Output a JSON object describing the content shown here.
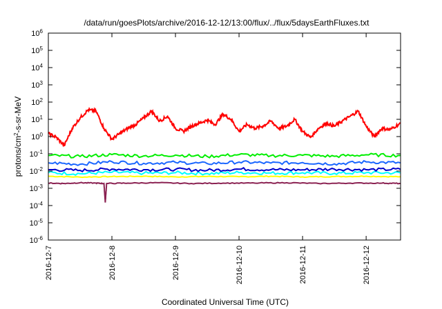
{
  "chart_data": {
    "type": "line",
    "title": "/data/run/goesPlots/archive/2016-12-12/13:00/flux/../flux/5daysEarthFluxes.txt",
    "xlabel": "Coordinated Universal Time (UTC)",
    "ylabel": {
      "base": "protons/cm",
      "sup": "2",
      "rest": "-s-sr-MeV"
    },
    "yscale": "log",
    "ylim": [
      1e-06,
      1000000.0
    ],
    "xlim": [
      "2016-12-07 00:00",
      "2016-12-12 13:00"
    ],
    "grid": false,
    "legend": "none",
    "y_ticks": [
      {
        "mantissa": "10",
        "exp": "-6"
      },
      {
        "mantissa": "10",
        "exp": "-5"
      },
      {
        "mantissa": "10",
        "exp": "-4"
      },
      {
        "mantissa": "10",
        "exp": "-3"
      },
      {
        "mantissa": "10",
        "exp": "-2"
      },
      {
        "mantissa": "10",
        "exp": "-1"
      },
      {
        "mantissa": "10",
        "exp": "0"
      },
      {
        "mantissa": "10",
        "exp": "1"
      },
      {
        "mantissa": "10",
        "exp": "2"
      },
      {
        "mantissa": "10",
        "exp": "3"
      },
      {
        "mantissa": "10",
        "exp": "4"
      },
      {
        "mantissa": "10",
        "exp": "5"
      },
      {
        "mantissa": "10",
        "exp": "6"
      }
    ],
    "x_ticks": [
      "2016-12-7",
      "2016-12-8",
      "2016-12-9",
      "2016-12-10",
      "2016-12-11",
      "2016-12-12"
    ],
    "series": [
      {
        "color": "#ffff00",
        "x": [
          "2016-12-07 00:00",
          "2016-12-07 12:00",
          "2016-12-08 00:00",
          "2016-12-08 12:00",
          "2016-12-09 00:00",
          "2016-12-09 12:00",
          "2016-12-10 00:00",
          "2016-12-10 12:00",
          "2016-12-11 00:00",
          "2016-12-11 12:00",
          "2016-12-12 00:00",
          "2016-12-12 13:00"
        ],
        "y": [
          0.005,
          0.0045,
          0.0048,
          0.005,
          0.0046,
          0.0049,
          0.0047,
          0.005,
          0.0046,
          0.0048,
          0.005,
          0.0047
        ]
      },
      {
        "color": "#00ffff",
        "x": [
          "2016-12-07 00:00",
          "2016-12-07 12:00",
          "2016-12-08 00:00",
          "2016-12-08 12:00",
          "2016-12-09 00:00",
          "2016-12-09 12:00",
          "2016-12-10 00:00",
          "2016-12-10 12:00",
          "2016-12-11 00:00",
          "2016-12-11 12:00",
          "2016-12-12 00:00",
          "2016-12-12 13:00"
        ],
        "y": [
          0.008,
          0.007,
          0.0085,
          0.0075,
          0.008,
          0.0072,
          0.0082,
          0.0076,
          0.008,
          0.0074,
          0.0081,
          0.0078
        ]
      },
      {
        "color": "#0000cc",
        "x": [
          "2016-12-07 00:00",
          "2016-12-07 12:00",
          "2016-12-08 00:00",
          "2016-12-08 12:00",
          "2016-12-09 00:00",
          "2016-12-09 12:00",
          "2016-12-10 00:00",
          "2016-12-10 12:00",
          "2016-12-11 00:00",
          "2016-12-11 12:00",
          "2016-12-12 00:00",
          "2016-12-12 13:00"
        ],
        "y": [
          0.012,
          0.011,
          0.013,
          0.012,
          0.0125,
          0.011,
          0.013,
          0.012,
          0.0118,
          0.013,
          0.012,
          0.0125
        ]
      },
      {
        "color": "#1a66ff",
        "x": [
          "2016-12-07 00:00",
          "2016-12-07 12:00",
          "2016-12-08 00:00",
          "2016-12-08 12:00",
          "2016-12-09 00:00",
          "2016-12-09 12:00",
          "2016-12-10 00:00",
          "2016-12-10 12:00",
          "2016-12-11 00:00",
          "2016-12-11 12:00",
          "2016-12-12 00:00",
          "2016-12-12 13:00"
        ],
        "y": [
          0.03,
          0.025,
          0.035,
          0.028,
          0.032,
          0.027,
          0.033,
          0.029,
          0.031,
          0.026,
          0.034,
          0.03
        ]
      },
      {
        "color": "#00ee00",
        "x": [
          "2016-12-07 00:00",
          "2016-12-07 12:00",
          "2016-12-08 00:00",
          "2016-12-08 12:00",
          "2016-12-09 00:00",
          "2016-12-09 12:00",
          "2016-12-10 00:00",
          "2016-12-10 12:00",
          "2016-12-11 00:00",
          "2016-12-11 12:00",
          "2016-12-12 00:00",
          "2016-12-12 13:00"
        ],
        "y": [
          0.08,
          0.07,
          0.09,
          0.075,
          0.085,
          0.07,
          0.09,
          0.078,
          0.082,
          0.072,
          0.088,
          0.08
        ]
      },
      {
        "color": "#8b2252",
        "x": [
          "2016-12-07 00:00",
          "2016-12-07 06:00",
          "2016-12-07 12:00",
          "2016-12-07 18:00",
          "2016-12-07 21:00",
          "2016-12-07 21:30",
          "2016-12-07 22:00",
          "2016-12-08 06:00",
          "2016-12-08 18:00",
          "2016-12-09 06:00",
          "2016-12-09 18:00",
          "2016-12-10 06:00",
          "2016-12-10 18:00",
          "2016-12-11 06:00",
          "2016-12-11 18:00",
          "2016-12-12 06:00",
          "2016-12-12 13:00"
        ],
        "y": [
          0.002,
          0.0019,
          0.0021,
          0.002,
          0.0019,
          0.00015,
          0.0019,
          0.002,
          0.0021,
          0.0019,
          0.002,
          0.002,
          0.0021,
          0.0019,
          0.002,
          0.002,
          0.0019
        ]
      },
      {
        "color": "#ff0000",
        "x": [
          "2016-12-07 00:00",
          "2016-12-07 03:00",
          "2016-12-07 06:00",
          "2016-12-07 09:00",
          "2016-12-07 12:00",
          "2016-12-07 15:00",
          "2016-12-07 18:00",
          "2016-12-07 21:00",
          "2016-12-08 00:00",
          "2016-12-08 03:00",
          "2016-12-08 06:00",
          "2016-12-08 09:00",
          "2016-12-08 12:00",
          "2016-12-08 15:00",
          "2016-12-08 18:00",
          "2016-12-08 21:00",
          "2016-12-09 00:00",
          "2016-12-09 03:00",
          "2016-12-09 06:00",
          "2016-12-09 09:00",
          "2016-12-09 12:00",
          "2016-12-09 15:00",
          "2016-12-09 18:00",
          "2016-12-09 21:00",
          "2016-12-10 00:00",
          "2016-12-10 03:00",
          "2016-12-10 06:00",
          "2016-12-10 09:00",
          "2016-12-10 12:00",
          "2016-12-10 15:00",
          "2016-12-10 18:00",
          "2016-12-10 21:00",
          "2016-12-11 00:00",
          "2016-12-11 03:00",
          "2016-12-11 06:00",
          "2016-12-11 09:00",
          "2016-12-11 12:00",
          "2016-12-11 15:00",
          "2016-12-11 18:00",
          "2016-12-11 21:00",
          "2016-12-12 00:00",
          "2016-12-12 03:00",
          "2016-12-12 06:00",
          "2016-12-12 09:00",
          "2016-12-12 13:00"
        ],
        "y": [
          1.5,
          0.9,
          0.3,
          3,
          12,
          35,
          30,
          3,
          0.7,
          1.5,
          3,
          5,
          12,
          30,
          8,
          15,
          3,
          2,
          4,
          6,
          9,
          5,
          20,
          10,
          2,
          5,
          3,
          4,
          8,
          3,
          4,
          10,
          2,
          0.9,
          3,
          6,
          4,
          8,
          15,
          30,
          4,
          1,
          3,
          2.5,
          6
        ]
      }
    ]
  }
}
